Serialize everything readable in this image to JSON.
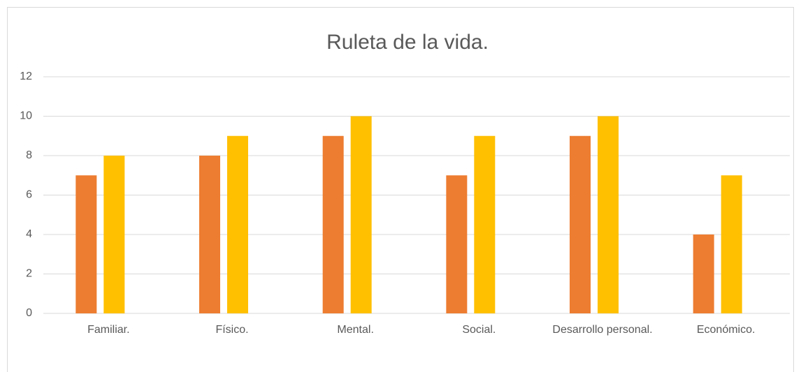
{
  "chart_data": {
    "type": "bar",
    "title": "Ruleta de la vida.",
    "categories": [
      "Familiar.",
      "Físico.",
      "Mental.",
      "Social.",
      "Desarrollo personal.",
      "Económico."
    ],
    "series": [
      {
        "color": "#ED7D31",
        "values": [
          7,
          8,
          9,
          7,
          9,
          4
        ]
      },
      {
        "color": "#FFC000",
        "values": [
          8,
          9,
          10,
          9,
          10,
          7
        ]
      }
    ],
    "ylim": [
      0,
      12
    ],
    "yticks": [
      0,
      2,
      4,
      6,
      8,
      10,
      12
    ],
    "grid": true
  }
}
